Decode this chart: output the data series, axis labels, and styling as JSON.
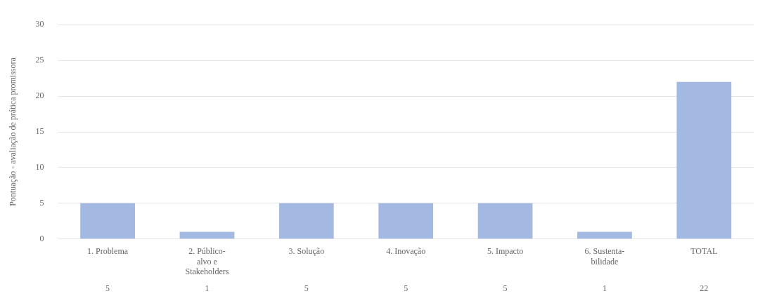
{
  "chart_data": {
    "type": "bar",
    "ylabel": "Pontuação - avaliação de prática promissora",
    "categories": [
      "1. Problema",
      "2. Público-\nalvo e\nStakeholders",
      "3. Solução",
      "4. Inovação",
      "5. Impacto",
      "6. Sustenta-\nbilidade",
      "TOTAL"
    ],
    "values": [
      5,
      1,
      5,
      5,
      5,
      1,
      22
    ],
    "color": "#a4b9e1",
    "ylim": [
      0,
      30
    ],
    "yticks": [
      0,
      5,
      10,
      15,
      20,
      25,
      30
    ],
    "grid": "y",
    "data_labels": true,
    "legend": false
  }
}
